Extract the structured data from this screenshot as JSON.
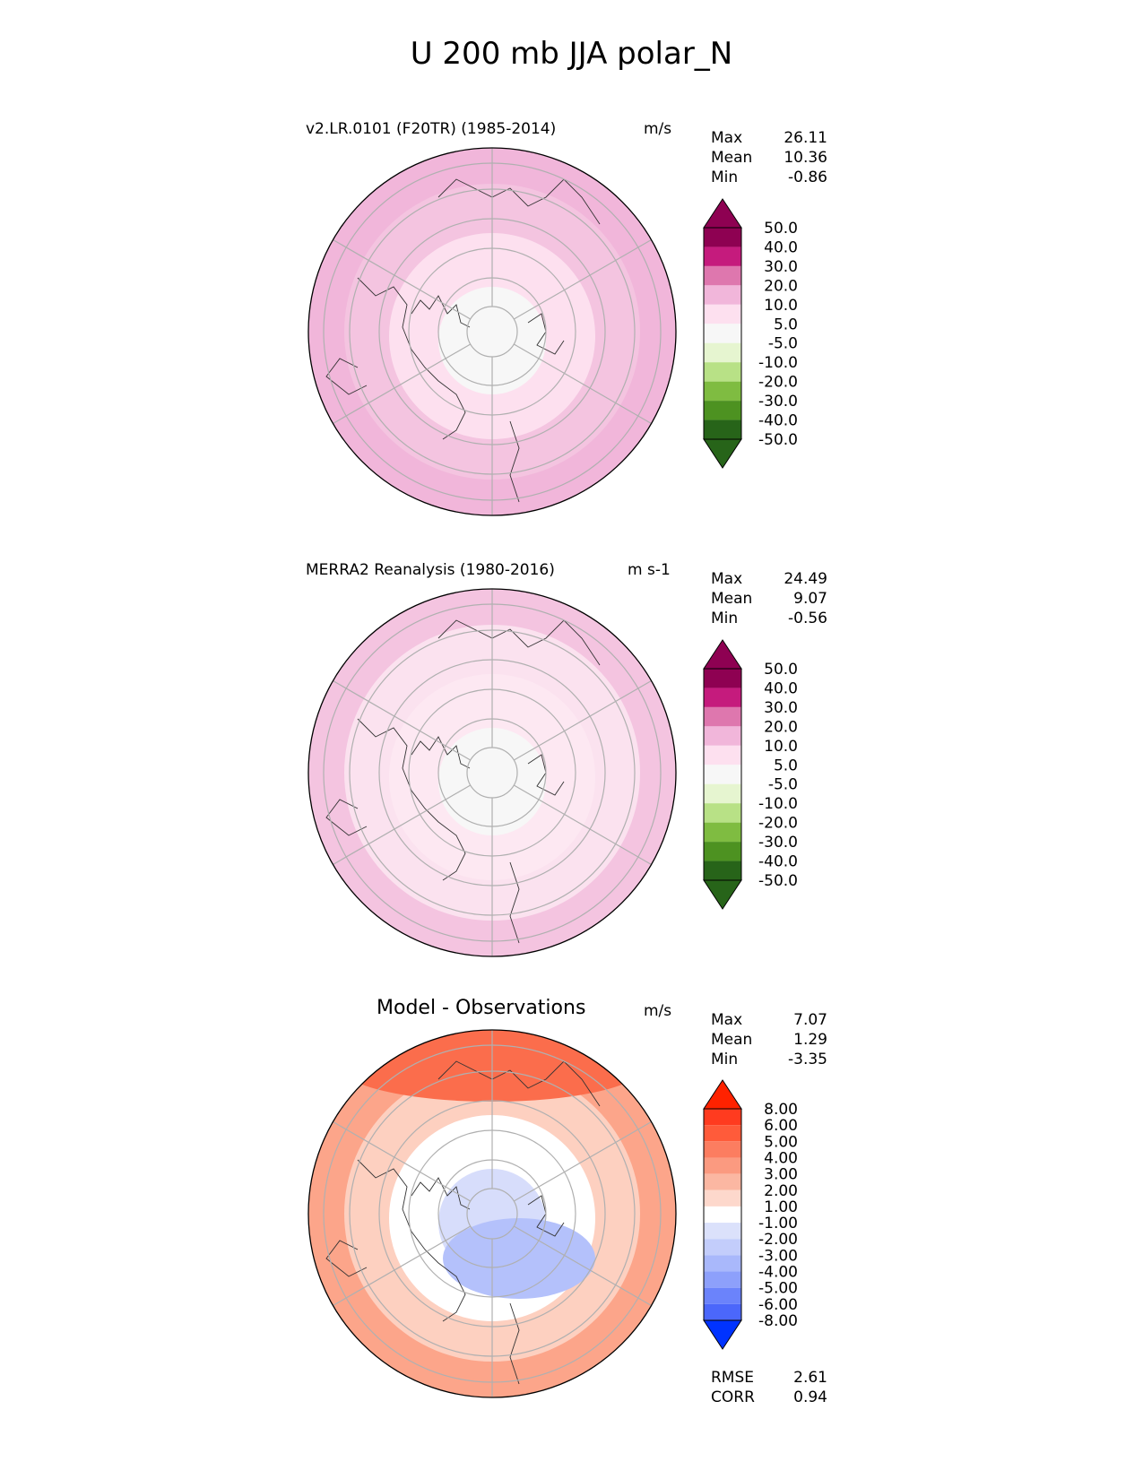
{
  "page_title": "U 200 mb JJA polar_N",
  "panels": [
    {
      "title": "v2.LR.0101 (F20TR) (1985-2014)",
      "units": "m/s",
      "stats": {
        "max_label": "Max",
        "max": "26.11",
        "mean_label": "Mean",
        "mean": "10.36",
        "min_label": "Min",
        "min": "-0.86"
      }
    },
    {
      "title": "MERRA2 Reanalysis (1980-2016)",
      "units": "m s-1",
      "stats": {
        "max_label": "Max",
        "max": "24.49",
        "mean_label": "Mean",
        "mean": "9.07",
        "min_label": "Min",
        "min": "-0.56"
      }
    },
    {
      "title": "Model - Observations",
      "units": "m/s",
      "stats": {
        "max_label": "Max",
        "max": "7.07",
        "mean_label": "Mean",
        "mean": "1.29",
        "min_label": "Min",
        "min": "-3.35"
      },
      "metrics": {
        "rmse_label": "RMSE",
        "rmse": "2.61",
        "corr_label": "CORR",
        "corr": "0.94"
      }
    }
  ],
  "chart_data": [
    {
      "type": "heatmap",
      "projection": "north-polar-stereographic",
      "title": "v2.LR.0101 (F20TR) (1985-2014)",
      "units": "m/s",
      "colorbar_levels": [
        "50.0",
        "40.0",
        "30.0",
        "20.0",
        "10.0",
        "5.0",
        "-5.0",
        "-10.0",
        "-20.0",
        "-30.0",
        "-40.0",
        "-50.0"
      ],
      "colorbar_colors": [
        "#8e0152",
        "#c51b7d",
        "#de77ae",
        "#f1b6da",
        "#fde0ef",
        "#f7f7f7",
        "#e6f5d0",
        "#b8e186",
        "#7fbc41",
        "#4d9221",
        "#276419"
      ],
      "colorbar_extend_top": "#8e0152",
      "colorbar_extend_bottom": "#276419",
      "field_rings_outer_to_inner": [
        "#f1b6da",
        "#f4c4e0",
        "#fde0ef",
        "#f7f7f7"
      ],
      "max": 26.11,
      "mean": 10.36,
      "min": -0.86
    },
    {
      "type": "heatmap",
      "projection": "north-polar-stereographic",
      "title": "MERRA2 Reanalysis (1980-2016)",
      "units": "m s-1",
      "colorbar_levels": [
        "50.0",
        "40.0",
        "30.0",
        "20.0",
        "10.0",
        "5.0",
        "-5.0",
        "-10.0",
        "-20.0",
        "-30.0",
        "-40.0",
        "-50.0"
      ],
      "colorbar_colors": [
        "#8e0152",
        "#c51b7d",
        "#de77ae",
        "#f1b6da",
        "#fde0ef",
        "#f7f7f7",
        "#e6f5d0",
        "#b8e186",
        "#7fbc41",
        "#4d9221",
        "#276419"
      ],
      "colorbar_extend_top": "#8e0152",
      "colorbar_extend_bottom": "#276419",
      "field_rings_outer_to_inner": [
        "#f4c4e0",
        "#fbe2ef",
        "#fde8f2",
        "#f7f7f7"
      ],
      "max": 24.49,
      "mean": 9.07,
      "min": -0.56
    },
    {
      "type": "heatmap",
      "projection": "north-polar-stereographic",
      "title": "Model - Observations",
      "units": "m/s",
      "colorbar_levels": [
        "8.00",
        "6.00",
        "5.00",
        "4.00",
        "3.00",
        "2.00",
        "1.00",
        "-1.00",
        "-2.00",
        "-3.00",
        "-4.00",
        "-5.00",
        "-6.00",
        "-8.00"
      ],
      "colorbar_colors": [
        "#ff3b1f",
        "#ff5b3a",
        "#fc7d60",
        "#fb9a80",
        "#fbb7a2",
        "#fdd8cc",
        "#ffffff",
        "#dbe1fb",
        "#c3cdfb",
        "#a9b8fb",
        "#8da0fb",
        "#6b83fb",
        "#4b67fb"
      ],
      "colorbar_extend_top": "#ff2200",
      "colorbar_extend_bottom": "#0033ff",
      "field_rings_outer_to_inner": [
        "#fca58a",
        "#fdd0c0",
        "#ffffff",
        "#d7ddfb"
      ],
      "max": 7.07,
      "mean": 1.29,
      "min": -3.35,
      "rmse": 2.61,
      "corr": 0.94
    }
  ]
}
